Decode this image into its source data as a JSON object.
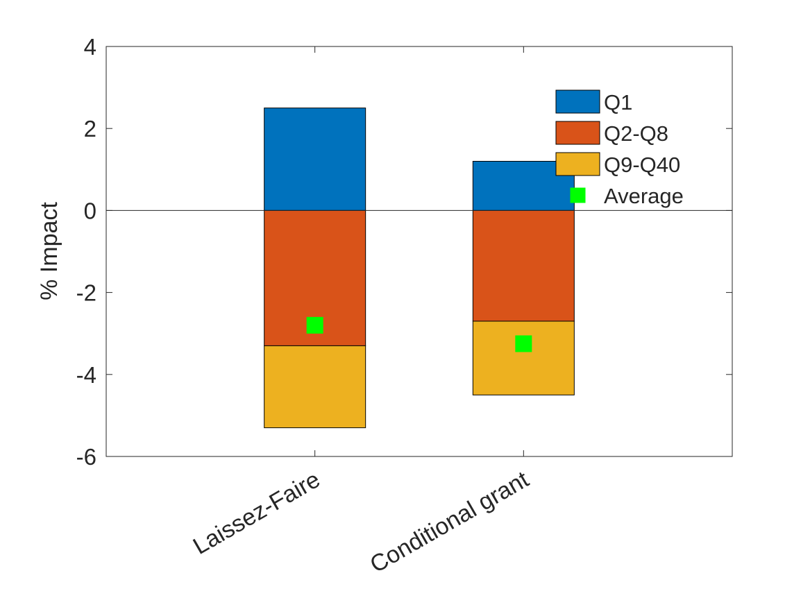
{
  "chart_data": {
    "type": "bar",
    "stacked": true,
    "categories": [
      "Laissez-Faire",
      "Conditional grant"
    ],
    "ylabel": "% Impact",
    "ylim": [
      -6,
      4
    ],
    "yticks": [
      4,
      2,
      0,
      -2,
      -4,
      -6
    ],
    "series": [
      {
        "name": "Q1",
        "color": "#0072BD",
        "values": [
          2.5,
          1.2
        ]
      },
      {
        "name": "Q2-Q8",
        "color": "#D95319",
        "values": [
          -3.3,
          -2.7
        ]
      },
      {
        "name": "Q9-Q40",
        "color": "#EDB120",
        "values": [
          -2.0,
          -1.8
        ]
      }
    ],
    "average": {
      "name": "Average",
      "color": "#00FF00",
      "values": [
        -2.8,
        -3.25
      ]
    },
    "legend_position": "top-right",
    "grid": false
  }
}
